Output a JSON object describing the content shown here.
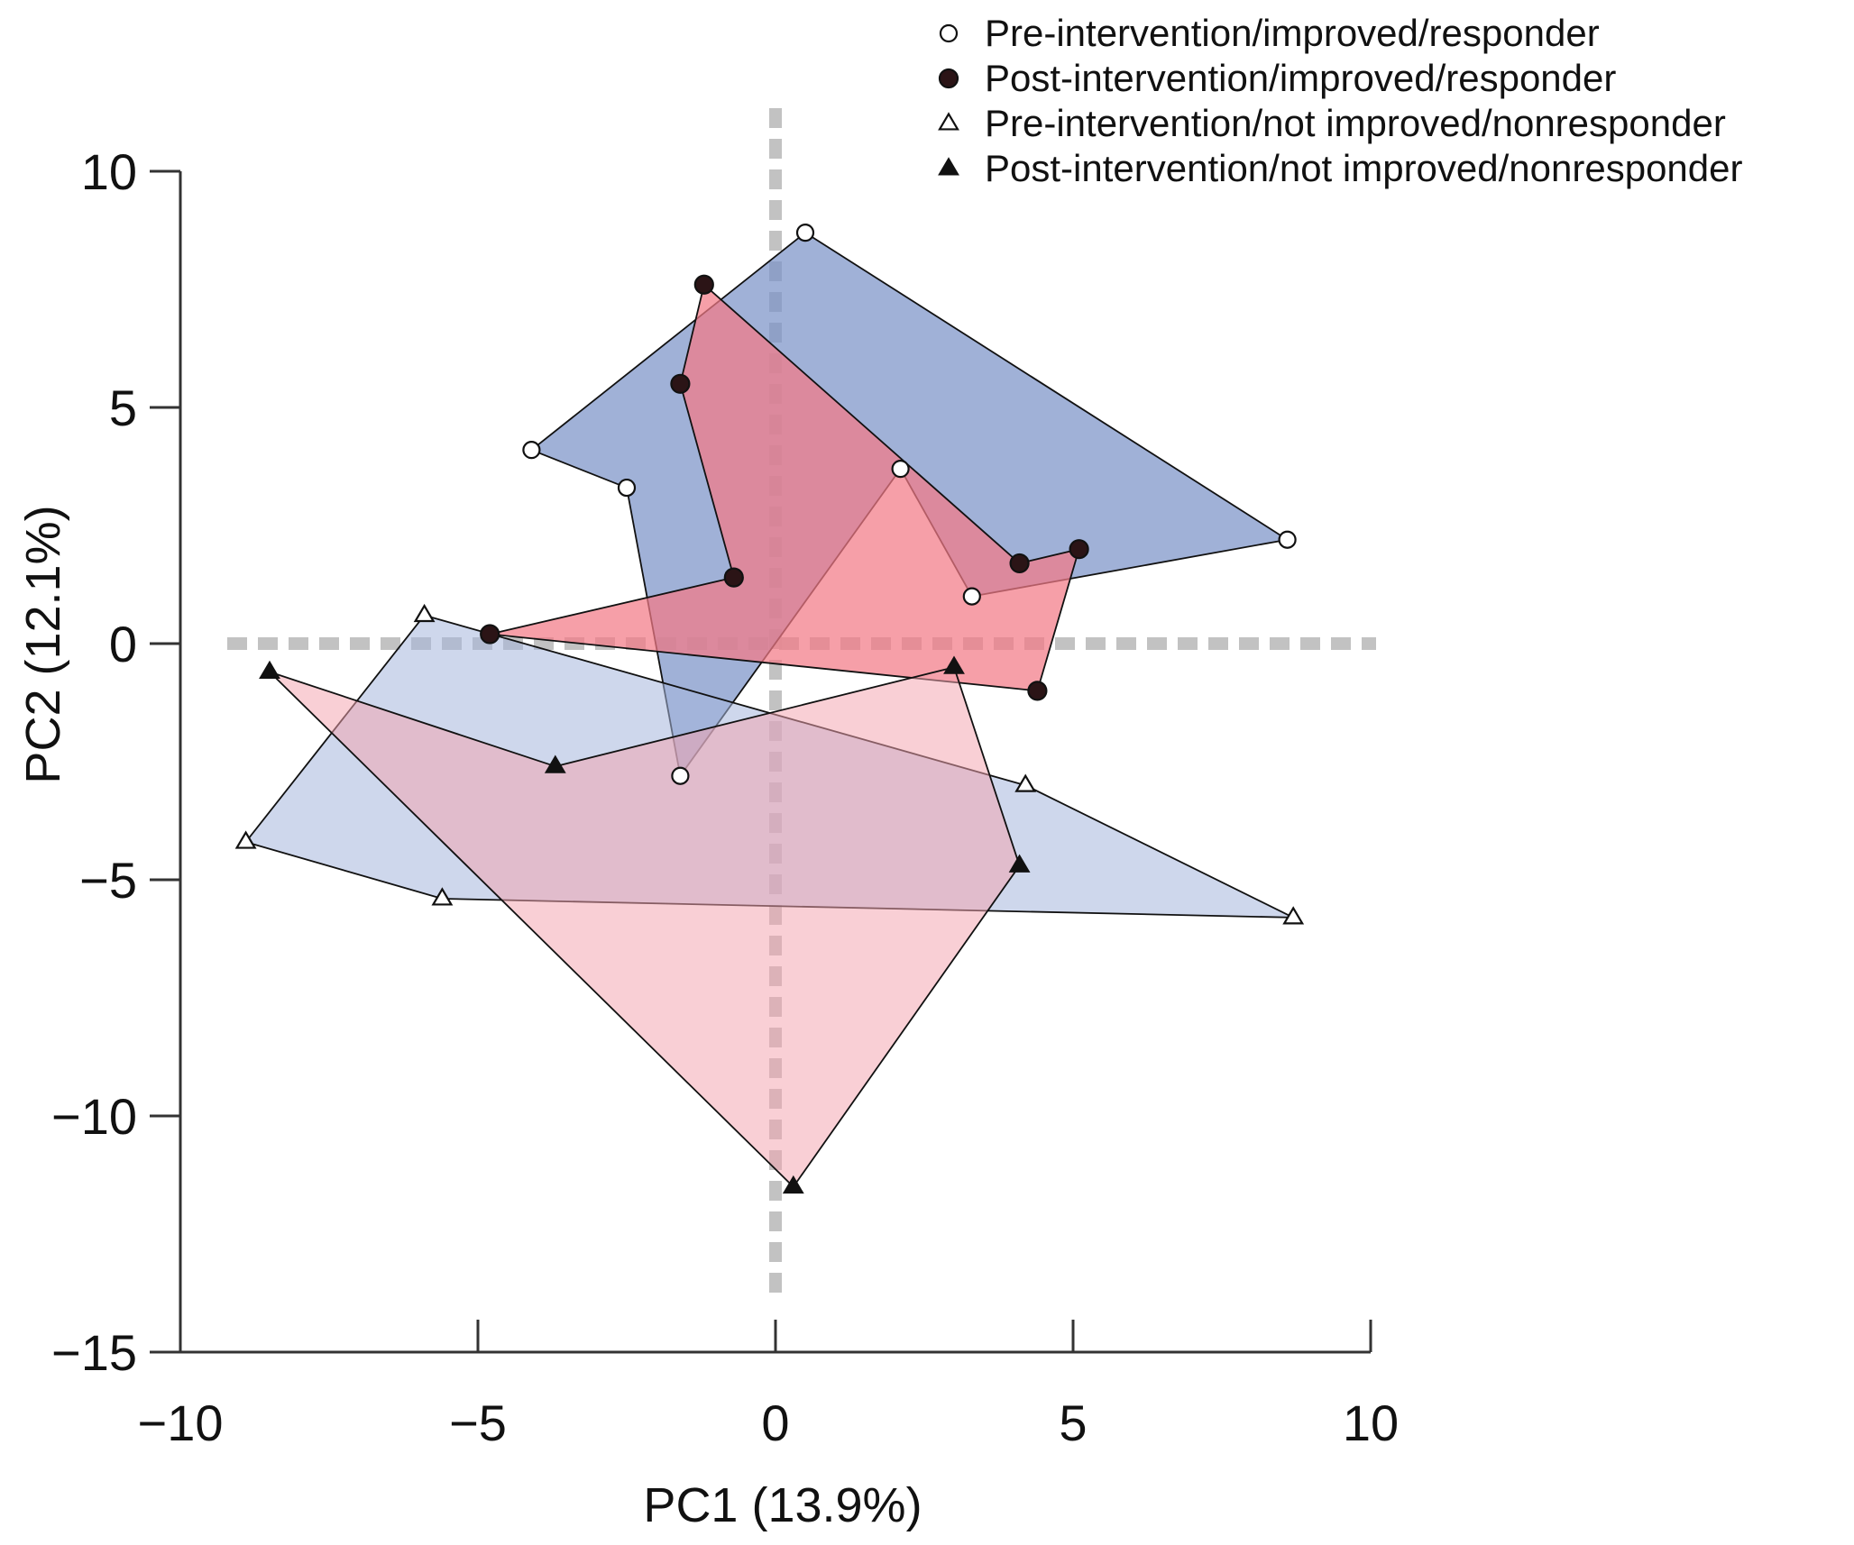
{
  "chart_data": {
    "type": "scatter",
    "title": "",
    "xlabel": "PC1 (13.9%)",
    "ylabel": "PC2 (12.1%)",
    "xlim": [
      -10,
      10
    ],
    "ylim": [
      -15,
      10
    ],
    "xticks": [
      -10,
      -5,
      0,
      5,
      10
    ],
    "yticks": [
      -15,
      -10,
      -5,
      0,
      5,
      10
    ],
    "xtick_labels": [
      "−10",
      "−5",
      "0",
      "5",
      "10"
    ],
    "ytick_labels": [
      "−15",
      "−10",
      "−5",
      "0",
      "5",
      "10"
    ],
    "reference_lines": {
      "x": 0,
      "y": 0,
      "style": "dashed",
      "color": "#bbbbbb"
    },
    "legend_position": "top-right",
    "series": [
      {
        "name": "Pre-intervention/improved/responder",
        "marker": "open-circle",
        "hull_fill": "#7b93c8",
        "hull_opacity": 0.72,
        "points": [
          {
            "x": 0.5,
            "y": 8.7
          },
          {
            "x": 8.6,
            "y": 2.2
          },
          {
            "x": 3.3,
            "y": 1.0
          },
          {
            "x": 2.1,
            "y": 3.7
          },
          {
            "x": -1.6,
            "y": -2.8
          },
          {
            "x": -2.5,
            "y": 3.3
          },
          {
            "x": -4.1,
            "y": 4.1
          }
        ]
      },
      {
        "name": "Post-intervention/improved/responder",
        "marker": "filled-circle",
        "hull_fill": "#f27a86",
        "hull_opacity": 0.72,
        "points": [
          {
            "x": -1.2,
            "y": 7.6
          },
          {
            "x": 4.1,
            "y": 1.7
          },
          {
            "x": 5.1,
            "y": 2.0
          },
          {
            "x": 4.4,
            "y": -1.0
          },
          {
            "x": -4.8,
            "y": 0.2
          },
          {
            "x": -0.7,
            "y": 1.4
          },
          {
            "x": -1.6,
            "y": 5.5
          }
        ]
      },
      {
        "name": "Pre-intervention/not improved/nonresponder",
        "marker": "open-triangle",
        "hull_fill": "#a5b6dc",
        "hull_opacity": 0.55,
        "points": [
          {
            "x": -5.9,
            "y": 0.6
          },
          {
            "x": 4.2,
            "y": -3.0
          },
          {
            "x": 8.7,
            "y": -5.8
          },
          {
            "x": -5.6,
            "y": -5.4
          },
          {
            "x": -8.9,
            "y": -4.2
          }
        ]
      },
      {
        "name": "Post-intervention/not improved/nonresponder",
        "marker": "filled-triangle",
        "hull_fill": "#f4a3ae",
        "hull_opacity": 0.52,
        "points": [
          {
            "x": -8.5,
            "y": -0.6
          },
          {
            "x": -3.7,
            "y": -2.6
          },
          {
            "x": 3.0,
            "y": -0.5
          },
          {
            "x": 4.1,
            "y": -4.7
          },
          {
            "x": 0.3,
            "y": -11.5
          }
        ]
      }
    ]
  }
}
